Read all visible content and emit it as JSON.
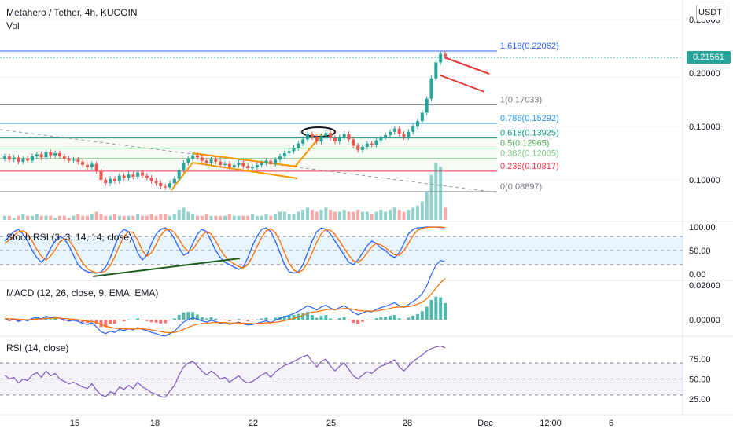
{
  "header": {
    "title": "Metahero / Tether, 4h, KUCOIN",
    "volume_label": "Vol",
    "currency_button": "USDT",
    "last_price": "0.21561"
  },
  "colors": {
    "up": "#26a69a",
    "down": "#ef5350",
    "fib_line": "#787b86",
    "grid": "#f0f3fa",
    "stoch_k": "#2962ff",
    "stoch_d": "#ff6d00",
    "rsi": "#7e57c2",
    "macd_line": "#2962ff",
    "signal_line": "#ff6d00",
    "pattern": "#ff9800",
    "trendline_green": "#1b5e20",
    "trendline_red": "#e53935"
  },
  "chart_data": {
    "type": "candlestick",
    "title": "Metahero / Tether, 4h, KUCOIN",
    "x_ticks": [
      "15",
      "18",
      "22",
      "25",
      "28",
      "Dec",
      "12:00",
      "6"
    ],
    "price_axis": {
      "ticks": [
        "0.25000",
        "0.20000",
        "0.15000",
        "0.10000"
      ],
      "tick_values": [
        0.25,
        0.2,
        0.15,
        0.1
      ],
      "ylim": [
        0.07,
        0.26
      ]
    },
    "fib_levels": [
      {
        "label": "1.618(0.22062)",
        "value": 0.22062,
        "color": "#2962ff"
      },
      {
        "label": "1(0.17033)",
        "value": 0.17033,
        "color": "#787b86"
      },
      {
        "label": "0.786(0.15292)",
        "value": 0.15292,
        "color": "#2196f3"
      },
      {
        "label": "0.618(0.13925)",
        "value": 0.13925,
        "color": "#089981"
      },
      {
        "label": "0.5(0.12965)",
        "value": 0.12965,
        "color": "#4caf50"
      },
      {
        "label": "0.382(0.12005)",
        "value": 0.12005,
        "color": "#81c784"
      },
      {
        "label": "0.236(0.10817)",
        "value": 0.10817,
        "color": "#f23645"
      },
      {
        "label": "0(0.08897)",
        "value": 0.08897,
        "color": "#787b86"
      }
    ],
    "closes": [
      0.122,
      0.119,
      0.121,
      0.117,
      0.12,
      0.118,
      0.122,
      0.124,
      0.121,
      0.126,
      0.123,
      0.125,
      0.122,
      0.12,
      0.118,
      0.119,
      0.117,
      0.114,
      0.112,
      0.115,
      0.108,
      0.1,
      0.097,
      0.101,
      0.099,
      0.104,
      0.102,
      0.105,
      0.103,
      0.107,
      0.104,
      0.102,
      0.099,
      0.097,
      0.094,
      0.093,
      0.097,
      0.101,
      0.109,
      0.116,
      0.12,
      0.123,
      0.121,
      0.118,
      0.116,
      0.119,
      0.117,
      0.114,
      0.115,
      0.112,
      0.114,
      0.116,
      0.113,
      0.111,
      0.112,
      0.114,
      0.116,
      0.118,
      0.115,
      0.119,
      0.122,
      0.125,
      0.127,
      0.13,
      0.134,
      0.138,
      0.143,
      0.14,
      0.136,
      0.141,
      0.144,
      0.139,
      0.136,
      0.14,
      0.143,
      0.138,
      0.132,
      0.128,
      0.131,
      0.134,
      0.133,
      0.137,
      0.14,
      0.142,
      0.145,
      0.148,
      0.143,
      0.14,
      0.145,
      0.15,
      0.155,
      0.163,
      0.176,
      0.195,
      0.21,
      0.218,
      0.2156
    ],
    "volume": [
      2,
      2,
      1,
      2,
      3,
      2,
      2,
      3,
      2,
      2,
      2,
      1,
      2,
      2,
      1,
      2,
      3,
      2,
      2,
      3,
      4,
      3,
      2,
      2,
      3,
      2,
      2,
      2,
      2,
      3,
      2,
      2,
      3,
      2,
      3,
      3,
      2,
      3,
      5,
      6,
      4,
      3,
      2,
      2,
      3,
      2,
      2,
      2,
      2,
      3,
      2,
      2,
      2,
      2,
      3,
      2,
      2,
      3,
      2,
      3,
      4,
      4,
      3,
      3,
      4,
      5,
      6,
      5,
      4,
      5,
      6,
      5,
      4,
      4,
      5,
      4,
      4,
      5,
      4,
      4,
      3,
      4,
      5,
      4,
      5,
      6,
      5,
      4,
      5,
      6,
      7,
      9,
      14,
      22,
      28,
      26,
      6
    ],
    "stoch_rsi": {
      "label": "Stoch RSI (3, 3, 14, 14, close)",
      "ticks": [
        "100.00",
        "50.00",
        "0.00"
      ],
      "tick_values": [
        100,
        50,
        0
      ],
      "k": [
        70,
        80,
        90,
        95,
        85,
        70,
        50,
        35,
        25,
        35,
        55,
        70,
        80,
        75,
        60,
        40,
        20,
        10,
        5,
        3,
        2,
        5,
        15,
        35,
        60,
        85,
        95,
        90,
        70,
        45,
        30,
        40,
        65,
        85,
        95,
        98,
        90,
        75,
        55,
        40,
        45,
        65,
        85,
        95,
        90,
        70,
        50,
        35,
        25,
        20,
        15,
        10,
        15,
        35,
        60,
        80,
        95,
        98,
        90,
        70,
        45,
        20,
        5,
        2,
        5,
        20,
        45,
        70,
        90,
        98,
        95,
        85,
        70,
        55,
        40,
        25,
        20,
        30,
        45,
        60,
        70,
        65,
        55,
        50,
        40,
        35,
        45,
        65,
        85,
        95,
        98,
        99,
        100,
        100,
        100,
        99,
        99
      ],
      "d": [
        65,
        72,
        82,
        90,
        92,
        85,
        70,
        52,
        38,
        30,
        38,
        52,
        68,
        75,
        72,
        58,
        40,
        24,
        12,
        6,
        3,
        3,
        7,
        18,
        37,
        60,
        80,
        90,
        88,
        72,
        50,
        38,
        45,
        63,
        82,
        93,
        95,
        88,
        74,
        58,
        48,
        52,
        67,
        82,
        90,
        85,
        70,
        52,
        38,
        28,
        22,
        16,
        13,
        20,
        37,
        58,
        78,
        92,
        96,
        88,
        70,
        45,
        23,
        9,
        3,
        9,
        24,
        45,
        68,
        86,
        94,
        93,
        84,
        70,
        55,
        40,
        28,
        25,
        32,
        45,
        58,
        65,
        62,
        56,
        48,
        41,
        40,
        50,
        65,
        82,
        93,
        97,
        99,
        100,
        100,
        100,
        99
      ]
    },
    "macd": {
      "label": "MACD (12, 26, close, 9, EMA, EMA)",
      "ticks": [
        "0.02000",
        "0.00000"
      ],
      "tick_values": [
        0.02,
        0.0
      ]
    },
    "rsi": {
      "label": "RSI (14, close)",
      "ticks": [
        "75.00",
        "50.00",
        "25.00"
      ],
      "tick_values": [
        75,
        50,
        25
      ],
      "values": [
        55,
        50,
        52,
        45,
        50,
        48,
        55,
        58,
        52,
        60,
        54,
        57,
        50,
        47,
        44,
        46,
        43,
        40,
        38,
        44,
        36,
        30,
        28,
        34,
        32,
        40,
        37,
        42,
        38,
        46,
        40,
        37,
        33,
        31,
        28,
        27,
        35,
        42,
        55,
        65,
        70,
        72,
        66,
        60,
        55,
        60,
        56,
        50,
        52,
        46,
        50,
        54,
        48,
        45,
        47,
        51,
        55,
        58,
        52,
        59,
        63,
        67,
        69,
        72,
        75,
        78,
        80,
        72,
        65,
        72,
        75,
        66,
        60,
        66,
        70,
        62,
        54,
        50,
        55,
        59,
        57,
        62,
        66,
        68,
        71,
        74,
        65,
        60,
        66,
        72,
        76,
        80,
        85,
        88,
        90,
        91,
        89
      ]
    }
  }
}
